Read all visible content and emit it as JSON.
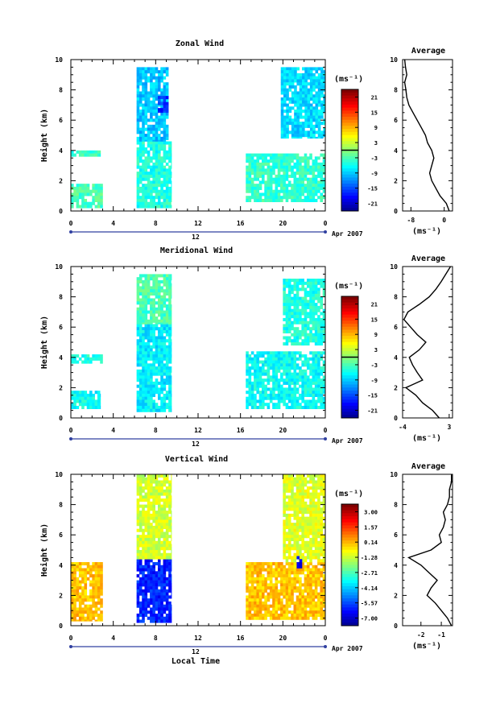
{
  "panels": [
    {
      "key": "zonal",
      "title": "Zonal Wind",
      "unit": "(ms⁻¹)",
      "colorbar_ticks": [
        "21",
        "15",
        "9",
        "3",
        "-3",
        "-9",
        "-15",
        "-21"
      ],
      "colorbar_range": [
        -24,
        24
      ],
      "avg_title": "Average",
      "avg_xticks": [
        "-8",
        "0"
      ],
      "avg_xlim": [
        -10,
        2
      ]
    },
    {
      "key": "meridional",
      "title": "Meridional Wind",
      "unit": "(ms⁻¹)",
      "colorbar_ticks": [
        "21",
        "15",
        "9",
        "3",
        "-3",
        "-9",
        "-15",
        "-21"
      ],
      "colorbar_range": [
        -24,
        24
      ],
      "avg_title": "Average",
      "avg_xticks": [
        "-4",
        "3"
      ],
      "avg_xlim": [
        -4,
        3.5
      ]
    },
    {
      "key": "vertical",
      "title": "Vertical Wind",
      "unit": "(ms⁻¹)",
      "colorbar_ticks": [
        "3.00",
        "1.57",
        "0.14",
        "-1.28",
        "-2.71",
        "-4.14",
        "-5.57",
        "-7.00"
      ],
      "colorbar_range": [
        -7.7,
        3.7
      ],
      "avg_title": "Average",
      "avg_xticks": [
        "-2",
        "-1"
      ],
      "avg_xlim": [
        -2.9,
        -0.45
      ]
    }
  ],
  "common": {
    "ylabel": "Height (km)",
    "xlabel": "Local Time",
    "xtick_labels": [
      "0",
      "4",
      "8",
      "12",
      "16",
      "20",
      "0"
    ],
    "ytick_labels": [
      "0",
      "2",
      "4",
      "6",
      "8",
      "10"
    ],
    "date_day": "12",
    "date_label": "Apr 2007",
    "avg_unit": "(ms⁻¹)"
  },
  "chart_data": [
    {
      "type": "heatmap",
      "title": "Zonal Wind",
      "xlabel": "",
      "ylabel": "Height (km)",
      "x_range_hours": [
        0,
        24
      ],
      "ylim": [
        0,
        10
      ],
      "colorbar": {
        "unit": "(ms⁻¹)",
        "ticks": [
          21,
          15,
          9,
          3,
          -3,
          -9,
          -15,
          -21
        ],
        "zero_line": true
      },
      "regions": [
        {
          "t": [
            0,
            3
          ],
          "h": [
            0.2,
            1.8
          ],
          "value": -3
        },
        {
          "t": [
            0,
            2.8
          ],
          "h": [
            3.6,
            4.0
          ],
          "value": -4
        },
        {
          "t": [
            6.2,
            9.5
          ],
          "h": [
            0.2,
            4.6
          ],
          "value": -5
        },
        {
          "t": [
            6.2,
            9.2
          ],
          "h": [
            4.6,
            9.5
          ],
          "value": -9
        },
        {
          "t": [
            8.2,
            9.2
          ],
          "h": [
            6.5,
            7.6
          ],
          "value": -16
        },
        {
          "t": [
            16.5,
            24
          ],
          "h": [
            0.6,
            3.8
          ],
          "value": -4
        },
        {
          "t": [
            19.8,
            24
          ],
          "h": [
            4.8,
            9.5
          ],
          "value": -8
        }
      ],
      "average_profile": {
        "x_label": "(ms⁻¹)",
        "height_km": [
          0,
          0.5,
          1,
          1.5,
          2,
          2.5,
          3,
          3.5,
          4,
          4.5,
          5,
          5.5,
          6,
          6.5,
          7,
          7.5,
          8,
          8.5,
          9,
          9.5,
          10
        ],
        "value": [
          1.2,
          0.5,
          -1.0,
          -2.0,
          -3.0,
          -3.5,
          -3.0,
          -2.5,
          -3.0,
          -4.0,
          -4.5,
          -5.5,
          -6.5,
          -7.5,
          -8.5,
          -9.0,
          -9.2,
          -9.5,
          -9.0,
          -9.3,
          -9.5
        ]
      }
    },
    {
      "type": "heatmap",
      "title": "Meridional Wind",
      "xlabel": "",
      "ylabel": "Height (km)",
      "x_range_hours": [
        0,
        24
      ],
      "ylim": [
        0,
        10
      ],
      "colorbar": {
        "unit": "(ms⁻¹)",
        "ticks": [
          21,
          15,
          9,
          3,
          -3,
          -9,
          -15,
          -21
        ],
        "zero_line": true
      },
      "regions": [
        {
          "t": [
            0,
            2.8
          ],
          "h": [
            0.6,
            1.8
          ],
          "value": -6
        },
        {
          "t": [
            0,
            3
          ],
          "h": [
            3.6,
            4.2
          ],
          "value": -5
        },
        {
          "t": [
            6.2,
            9.5
          ],
          "h": [
            0.4,
            6.2
          ],
          "value": -7
        },
        {
          "t": [
            6.2,
            9.5
          ],
          "h": [
            6.2,
            9.5
          ],
          "value": -3
        },
        {
          "t": [
            16.5,
            24
          ],
          "h": [
            0.6,
            4.4
          ],
          "value": -6
        },
        {
          "t": [
            20,
            24
          ],
          "h": [
            4.8,
            9.2
          ],
          "value": -5
        }
      ],
      "average_profile": {
        "x_label": "(ms⁻¹)",
        "height_km": [
          0,
          0.5,
          1,
          1.5,
          2,
          2.5,
          3,
          3.5,
          4,
          4.5,
          5,
          5.5,
          6,
          6.5,
          7,
          7.5,
          8,
          8.5,
          9,
          9.5,
          10
        ],
        "value": [
          1.5,
          0.5,
          -1.0,
          -2.0,
          -3.5,
          -1.0,
          -1.8,
          -2.5,
          -3.0,
          -1.5,
          -0.5,
          -1.8,
          -2.8,
          -3.8,
          -3.2,
          -1.5,
          0.0,
          1.0,
          1.8,
          2.5,
          3.2
        ]
      }
    },
    {
      "type": "heatmap",
      "title": "Vertical Wind",
      "xlabel": "Local Time",
      "ylabel": "Height (km)",
      "x_range_hours": [
        0,
        24
      ],
      "ylim": [
        0,
        10
      ],
      "colorbar": {
        "unit": "(ms⁻¹)",
        "ticks": [
          3.0,
          1.57,
          0.14,
          -1.28,
          -2.71,
          -4.14,
          -5.57,
          -7.0
        ],
        "zero_line": false
      },
      "regions": [
        {
          "t": [
            0,
            3
          ],
          "h": [
            0.3,
            4.2
          ],
          "value": 0.0
        },
        {
          "t": [
            6.2,
            9.5
          ],
          "h": [
            0.2,
            4.4
          ],
          "value": -6.0
        },
        {
          "t": [
            6.2,
            9.5
          ],
          "h": [
            4.4,
            10
          ],
          "value": -1.2
        },
        {
          "t": [
            16.5,
            24
          ],
          "h": [
            0.4,
            4.2
          ],
          "value": 0.0
        },
        {
          "t": [
            20,
            24
          ],
          "h": [
            4.2,
            10
          ],
          "value": -1.0
        },
        {
          "t": [
            21.3,
            21.8
          ],
          "h": [
            3.8,
            4.6
          ],
          "value": -6.5
        }
      ],
      "average_profile": {
        "x_label": "(ms⁻¹)",
        "height_km": [
          0,
          0.5,
          1,
          1.5,
          2,
          2.5,
          3,
          3.5,
          4,
          4.5,
          5,
          5.5,
          6,
          6.5,
          7,
          7.5,
          8,
          8.5,
          9,
          9.5,
          10
        ],
        "value": [
          -0.5,
          -0.7,
          -1.0,
          -1.3,
          -1.7,
          -1.5,
          -1.2,
          -1.6,
          -2.0,
          -2.6,
          -1.5,
          -1.0,
          -1.1,
          -0.9,
          -0.8,
          -0.9,
          -0.7,
          -0.6,
          -0.6,
          -0.5,
          -0.5
        ]
      }
    }
  ]
}
